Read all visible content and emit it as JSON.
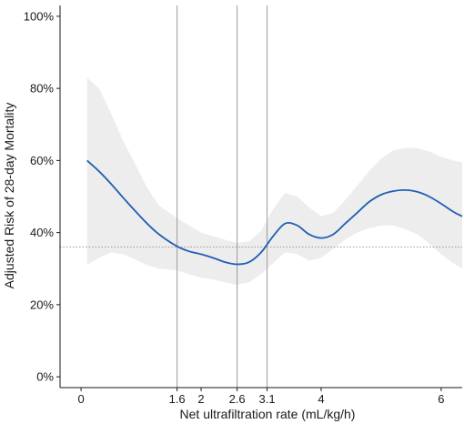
{
  "chart_data": {
    "type": "line",
    "title": "",
    "xlabel": "Net ultrafiltration rate (mL/kg/h)",
    "ylabel": "Adjusted Risk of 28-day Mortality",
    "xlim": [
      -0.35,
      6.35
    ],
    "ylim": [
      -0.03,
      1.03
    ],
    "x_ticks": [
      {
        "value": 0,
        "label": "0"
      },
      {
        "value": 1.6,
        "label": "1.6"
      },
      {
        "value": 2,
        "label": "2"
      },
      {
        "value": 2.6,
        "label": "2.6"
      },
      {
        "value": 3.1,
        "label": "3.1"
      },
      {
        "value": 4,
        "label": "4"
      },
      {
        "value": 6,
        "label": "6"
      }
    ],
    "y_ticks": [
      {
        "value": 0,
        "label": "0%"
      },
      {
        "value": 0.2,
        "label": "20%"
      },
      {
        "value": 0.4,
        "label": "40%"
      },
      {
        "value": 0.6,
        "label": "60%"
      },
      {
        "value": 0.8,
        "label": "80%"
      },
      {
        "value": 1.0,
        "label": "100%"
      }
    ],
    "vertical_lines": [
      1.6,
      2.6,
      3.1
    ],
    "reference_line": 0.36,
    "series": [
      {
        "x": [
          0.1,
          0.3,
          0.5,
          0.7,
          0.9,
          1.1,
          1.3,
          1.6,
          1.8,
          2.0,
          2.2,
          2.4,
          2.6,
          2.8,
          3.0,
          3.2,
          3.4,
          3.6,
          3.8,
          4.0,
          4.2,
          4.4,
          4.6,
          4.8,
          5.0,
          5.2,
          5.4,
          5.6,
          5.8,
          6.0,
          6.2,
          6.35
        ],
        "y": [
          0.6,
          0.57,
          0.535,
          0.497,
          0.46,
          0.425,
          0.395,
          0.362,
          0.348,
          0.34,
          0.33,
          0.318,
          0.312,
          0.318,
          0.345,
          0.39,
          0.425,
          0.42,
          0.395,
          0.385,
          0.395,
          0.425,
          0.455,
          0.485,
          0.505,
          0.515,
          0.518,
          0.513,
          0.5,
          0.48,
          0.458,
          0.445
        ],
        "ci_lower": [
          0.31,
          0.33,
          0.345,
          0.34,
          0.325,
          0.31,
          0.3,
          0.295,
          0.285,
          0.275,
          0.27,
          0.262,
          0.255,
          0.262,
          0.285,
          0.315,
          0.345,
          0.34,
          0.322,
          0.33,
          0.355,
          0.38,
          0.4,
          0.412,
          0.42,
          0.42,
          0.41,
          0.395,
          0.37,
          0.34,
          0.315,
          0.3
        ],
        "ci_upper": [
          0.83,
          0.8,
          0.73,
          0.655,
          0.59,
          0.525,
          0.475,
          0.44,
          0.42,
          0.4,
          0.39,
          0.38,
          0.372,
          0.375,
          0.405,
          0.465,
          0.51,
          0.5,
          0.47,
          0.445,
          0.455,
          0.49,
          0.53,
          0.57,
          0.605,
          0.628,
          0.635,
          0.635,
          0.625,
          0.61,
          0.6,
          0.595
        ]
      }
    ],
    "colors": {
      "line": "#1f5fb4",
      "band": "#ededed",
      "vertical_lines": "#9a9a9a",
      "reference_line": "#9a9a9a",
      "axis": "#1a1a1a"
    },
    "grid": false
  }
}
